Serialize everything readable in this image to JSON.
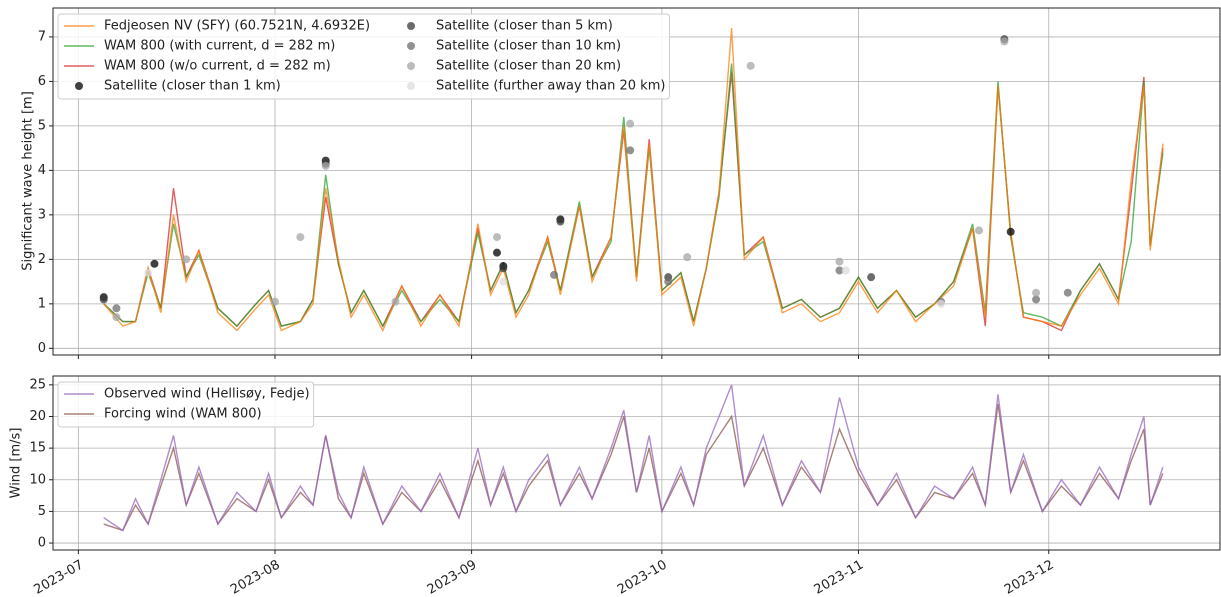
{
  "chart_data": [
    {
      "type": "line",
      "ylabel": "Significant wave height [m]",
      "xlim": [
        "2023-06-27",
        "2023-12-28"
      ],
      "xticks": [
        {
          "value": "2023-07-01",
          "label": "2023-07"
        },
        {
          "value": "2023-08-01",
          "label": "2023-08"
        },
        {
          "value": "2023-09-01",
          "label": "2023-09"
        },
        {
          "value": "2023-10-01",
          "label": "2023-10"
        },
        {
          "value": "2023-11-01",
          "label": "2023-11"
        },
        {
          "value": "2023-12-01",
          "label": "2023-12"
        }
      ],
      "ylim": [
        -0.15,
        7.65
      ],
      "yticks": [
        0,
        1,
        2,
        3,
        4,
        5,
        6,
        7
      ],
      "grid": true,
      "legend": "upper left",
      "legend_columns": 2,
      "x": [
        "2023-07-05",
        "2023-07-08",
        "2023-07-10",
        "2023-07-12",
        "2023-07-14",
        "2023-07-16",
        "2023-07-18",
        "2023-07-20",
        "2023-07-23",
        "2023-07-26",
        "2023-07-29",
        "2023-07-31",
        "2023-08-02",
        "2023-08-05",
        "2023-08-07",
        "2023-08-09",
        "2023-08-11",
        "2023-08-13",
        "2023-08-15",
        "2023-08-18",
        "2023-08-21",
        "2023-08-24",
        "2023-08-27",
        "2023-08-30",
        "2023-09-02",
        "2023-09-04",
        "2023-09-06",
        "2023-09-08",
        "2023-09-10",
        "2023-09-13",
        "2023-09-15",
        "2023-09-18",
        "2023-09-20",
        "2023-09-23",
        "2023-09-25",
        "2023-09-27",
        "2023-09-29",
        "2023-10-01",
        "2023-10-04",
        "2023-10-06",
        "2023-10-08",
        "2023-10-10",
        "2023-10-12",
        "2023-10-14",
        "2023-10-17",
        "2023-10-20",
        "2023-10-23",
        "2023-10-26",
        "2023-10-29",
        "2023-11-01",
        "2023-11-04",
        "2023-11-07",
        "2023-11-10",
        "2023-11-13",
        "2023-11-16",
        "2023-11-19",
        "2023-11-21",
        "2023-11-23",
        "2023-11-25",
        "2023-11-27",
        "2023-11-30",
        "2023-12-03",
        "2023-12-06",
        "2023-12-09",
        "2023-12-12",
        "2023-12-14",
        "2023-12-16",
        "2023-12-17",
        "2023-12-19"
      ],
      "series": [
        {
          "name": "Fedjeosen NV (SFY) (60.7521N, 4.6932E)",
          "color": "#ff7f0e",
          "values": [
            1.0,
            0.5,
            0.6,
            1.8,
            0.8,
            3.0,
            1.5,
            2.2,
            0.8,
            0.4,
            0.9,
            1.2,
            0.4,
            0.6,
            1.0,
            3.6,
            2.0,
            0.7,
            1.2,
            0.4,
            1.4,
            0.5,
            1.2,
            0.5,
            2.8,
            1.2,
            1.8,
            0.7,
            1.2,
            2.5,
            1.2,
            3.2,
            1.5,
            2.5,
            5.0,
            1.5,
            4.6,
            1.2,
            1.6,
            0.5,
            1.8,
            3.5,
            7.2,
            2.0,
            2.5,
            0.8,
            1.0,
            0.6,
            0.8,
            1.5,
            0.8,
            1.3,
            0.6,
            1.0,
            1.4,
            2.7,
            0.7,
            5.9,
            2.6,
            0.7,
            0.6,
            0.5,
            1.2,
            1.8,
            1.0,
            3.8,
            5.9,
            2.2,
            4.6
          ]
        },
        {
          "name": "WAM 800 (with current, d = 282 m)",
          "color": "#2ca02c",
          "values": [
            1.0,
            0.6,
            0.6,
            1.7,
            0.9,
            2.8,
            1.6,
            2.1,
            0.9,
            0.5,
            1.0,
            1.3,
            0.5,
            0.6,
            1.1,
            3.9,
            1.9,
            0.8,
            1.3,
            0.5,
            1.3,
            0.6,
            1.1,
            0.6,
            2.6,
            1.3,
            1.9,
            0.8,
            1.3,
            2.4,
            1.3,
            3.3,
            1.6,
            2.4,
            5.2,
            1.6,
            4.5,
            1.3,
            1.7,
            0.6,
            1.8,
            3.4,
            6.4,
            2.1,
            2.4,
            0.9,
            1.1,
            0.7,
            0.9,
            1.6,
            0.9,
            1.3,
            0.7,
            1.0,
            1.5,
            2.8,
            0.8,
            6.0,
            2.5,
            0.8,
            0.7,
            0.5,
            1.3,
            1.9,
            1.1,
            2.4,
            6.0,
            2.3,
            4.4
          ]
        },
        {
          "name": "WAM 800 (w/o current, d = 282 m)",
          "color": "#d62728",
          "values": [
            1.0,
            0.6,
            0.6,
            1.8,
            0.9,
            3.6,
            1.6,
            2.2,
            0.9,
            0.5,
            1.0,
            1.3,
            0.5,
            0.6,
            1.1,
            3.4,
            1.9,
            0.8,
            1.3,
            0.5,
            1.4,
            0.6,
            1.2,
            0.6,
            2.7,
            1.3,
            1.9,
            0.8,
            1.3,
            2.5,
            1.3,
            3.2,
            1.6,
            2.5,
            4.9,
            1.6,
            4.7,
            1.3,
            1.7,
            0.6,
            1.8,
            3.5,
            6.2,
            2.1,
            2.5,
            0.9,
            1.1,
            0.7,
            0.9,
            1.6,
            0.9,
            1.3,
            0.7,
            1.0,
            1.5,
            2.7,
            0.5,
            5.9,
            2.6,
            0.7,
            0.6,
            0.4,
            1.3,
            1.9,
            1.1,
            3.5,
            6.1,
            2.3,
            4.5
          ]
        }
      ],
      "scatter_series": [
        {
          "name": "Satellite (closer than 1 km)",
          "color": "#000000",
          "x": [
            "2023-07-05",
            "2023-07-13",
            "2023-08-09",
            "2023-09-05",
            "2023-09-06",
            "2023-09-15",
            "2023-11-25"
          ],
          "values": [
            1.15,
            1.9,
            4.22,
            2.15,
            1.85,
            2.9,
            2.62
          ]
        },
        {
          "name": "Satellite (closer than 5 km)",
          "color": "#3a3a3a",
          "x": [
            "2023-07-05",
            "2023-08-09",
            "2023-09-06",
            "2023-09-15",
            "2023-10-02",
            "2023-11-03",
            "2023-11-24"
          ],
          "values": [
            1.1,
            4.15,
            1.8,
            2.85,
            1.6,
            1.6,
            6.95
          ]
        },
        {
          "name": "Satellite (closer than 10 km)",
          "color": "#6e6e6e",
          "x": [
            "2023-07-07",
            "2023-09-14",
            "2023-09-26",
            "2023-10-02",
            "2023-10-29",
            "2023-11-14",
            "2023-11-29",
            "2023-12-04"
          ],
          "values": [
            0.9,
            1.65,
            4.45,
            1.5,
            1.75,
            1.05,
            1.1,
            1.25
          ]
        },
        {
          "name": "Satellite (closer than 20 km)",
          "color": "#a6a6a6",
          "x": [
            "2023-07-07",
            "2023-07-18",
            "2023-08-01",
            "2023-08-05",
            "2023-08-09",
            "2023-08-20",
            "2023-09-05",
            "2023-09-26",
            "2023-10-05",
            "2023-10-15",
            "2023-10-29",
            "2023-11-20",
            "2023-11-24",
            "2023-11-29"
          ],
          "values": [
            0.7,
            2.0,
            1.05,
            2.5,
            4.1,
            1.05,
            2.5,
            5.05,
            2.05,
            6.35,
            1.95,
            2.65,
            6.9,
            1.25
          ]
        },
        {
          "name": "Satellite (further away than 20 km)",
          "color": "#dcdcdc",
          "x": [
            "2023-07-12",
            "2023-09-06",
            "2023-10-30",
            "2023-11-14"
          ],
          "values": [
            1.7,
            1.5,
            1.75,
            1.0
          ]
        }
      ]
    },
    {
      "type": "line",
      "ylabel": "Wind [m/s]",
      "xlim": [
        "2023-06-27",
        "2023-12-28"
      ],
      "xticks": [
        {
          "value": "2023-07-01",
          "label": "2023-07"
        },
        {
          "value": "2023-08-01",
          "label": "2023-08"
        },
        {
          "value": "2023-09-01",
          "label": "2023-09"
        },
        {
          "value": "2023-10-01",
          "label": "2023-10"
        },
        {
          "value": "2023-11-01",
          "label": "2023-11"
        },
        {
          "value": "2023-12-01",
          "label": "2023-12"
        }
      ],
      "ylim": [
        -1.1,
        26.4
      ],
      "yticks": [
        0,
        5,
        10,
        15,
        20,
        25
      ],
      "grid": true,
      "legend": "upper left",
      "legend_columns": 1,
      "x": [
        "2023-07-05",
        "2023-07-08",
        "2023-07-10",
        "2023-07-12",
        "2023-07-14",
        "2023-07-16",
        "2023-07-18",
        "2023-07-20",
        "2023-07-23",
        "2023-07-26",
        "2023-07-29",
        "2023-07-31",
        "2023-08-02",
        "2023-08-05",
        "2023-08-07",
        "2023-08-09",
        "2023-08-11",
        "2023-08-13",
        "2023-08-15",
        "2023-08-18",
        "2023-08-21",
        "2023-08-24",
        "2023-08-27",
        "2023-08-30",
        "2023-09-02",
        "2023-09-04",
        "2023-09-06",
        "2023-09-08",
        "2023-09-10",
        "2023-09-13",
        "2023-09-15",
        "2023-09-18",
        "2023-09-20",
        "2023-09-23",
        "2023-09-25",
        "2023-09-27",
        "2023-09-29",
        "2023-10-01",
        "2023-10-04",
        "2023-10-06",
        "2023-10-08",
        "2023-10-10",
        "2023-10-12",
        "2023-10-14",
        "2023-10-17",
        "2023-10-20",
        "2023-10-23",
        "2023-10-26",
        "2023-10-29",
        "2023-11-01",
        "2023-11-04",
        "2023-11-07",
        "2023-11-10",
        "2023-11-13",
        "2023-11-16",
        "2023-11-19",
        "2023-11-21",
        "2023-11-23",
        "2023-11-25",
        "2023-11-27",
        "2023-11-30",
        "2023-12-03",
        "2023-12-06",
        "2023-12-09",
        "2023-12-12",
        "2023-12-14",
        "2023-12-16",
        "2023-12-17",
        "2023-12-19"
      ],
      "series": [
        {
          "name": "Observed wind (Hellisøy, Fedje)",
          "color": "#9467bd",
          "values": [
            4,
            2,
            7,
            3,
            10,
            17,
            6,
            12,
            3,
            8,
            5,
            11,
            4,
            9,
            6,
            17,
            8,
            4,
            12,
            3,
            9,
            5,
            11,
            4,
            15,
            6,
            12,
            5,
            10,
            14,
            6,
            12,
            7,
            15,
            21,
            8,
            17,
            5,
            12,
            6,
            15,
            20,
            25,
            9,
            17,
            6,
            13,
            8,
            23,
            12,
            6,
            11,
            4,
            9,
            7,
            12,
            6,
            23.5,
            8,
            14,
            5,
            10,
            6,
            12,
            7,
            14,
            20,
            6,
            12
          ]
        },
        {
          "name": "Forcing wind (WAM 800)",
          "color": "#8c564b",
          "values": [
            3,
            2,
            6,
            3,
            9,
            15,
            6,
            11,
            3,
            7,
            5,
            10,
            4,
            8,
            6,
            17,
            7,
            4,
            11,
            3,
            8,
            5,
            10,
            4,
            13,
            6,
            11,
            5,
            9,
            13,
            6,
            11,
            7,
            14,
            20,
            8,
            15,
            5,
            11,
            6,
            14,
            17,
            20,
            9,
            15,
            6,
            12,
            8,
            18,
            11,
            6,
            10,
            4,
            8,
            7,
            11,
            6,
            22,
            8,
            13,
            5,
            9,
            6,
            11,
            7,
            13,
            18,
            6,
            11
          ]
        }
      ]
    }
  ]
}
